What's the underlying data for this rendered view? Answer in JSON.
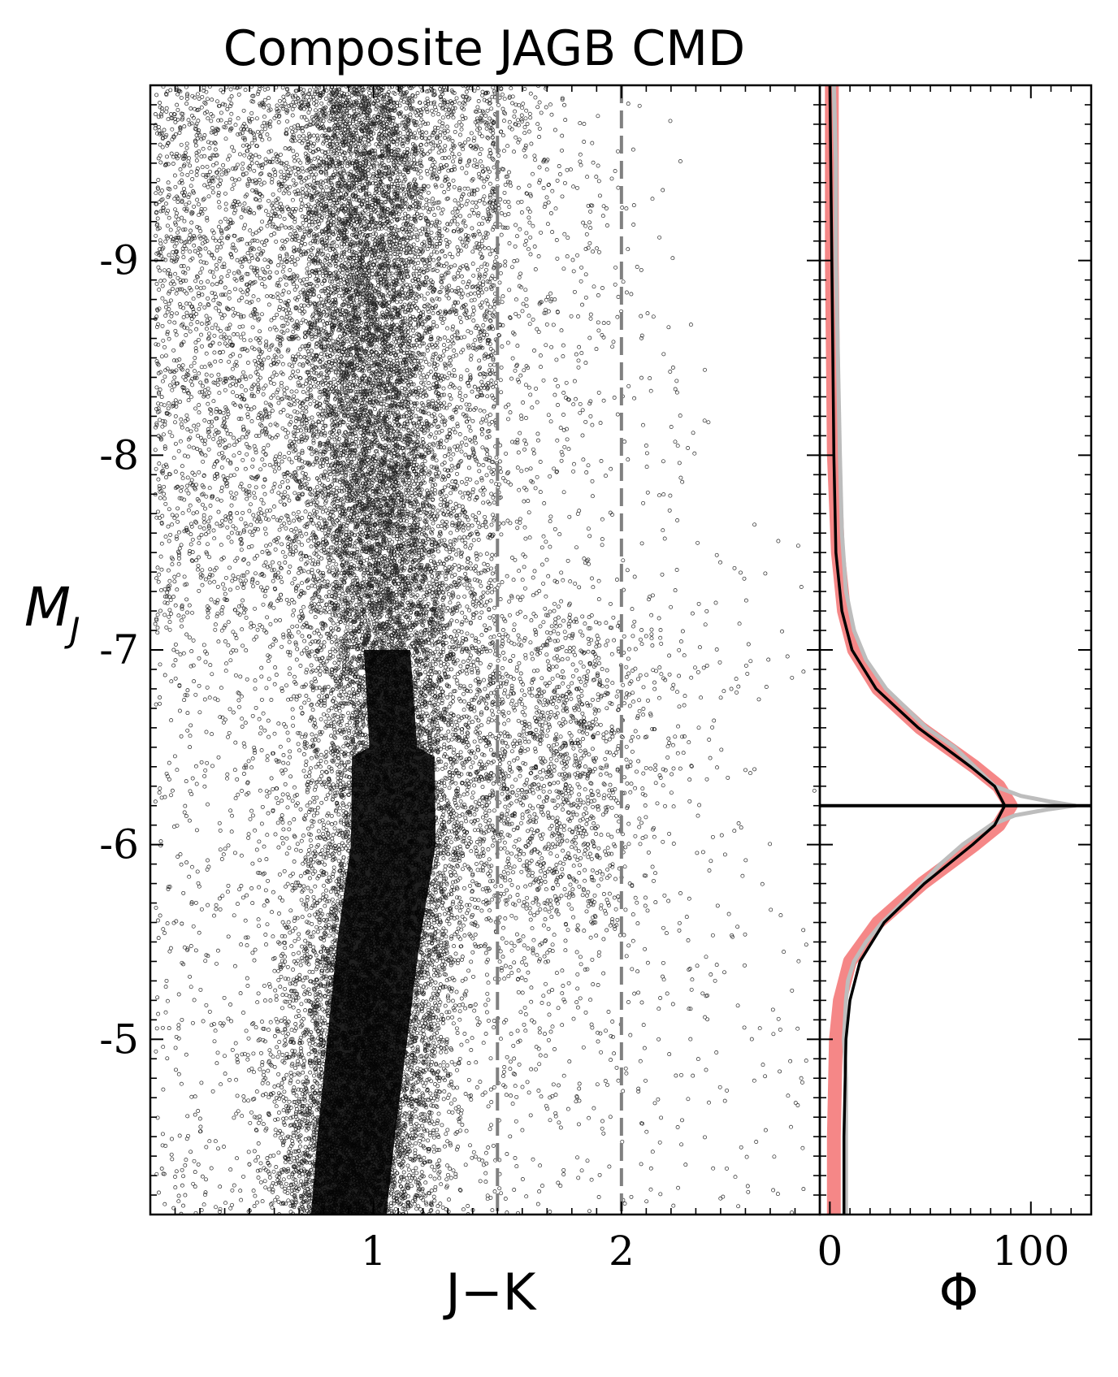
{
  "chart_data": [
    {
      "type": "scatter",
      "title": "Composite JAGB CMD",
      "xlabel": "J−K",
      "ylabel_main": "M",
      "ylabel_sub": "J",
      "xlim": [
        0.1,
        2.8
      ],
      "ylim": [
        -4.1,
        -9.9
      ],
      "y_inverted": true,
      "x_ticks": [
        {
          "value": 1,
          "label": "1"
        },
        {
          "value": 2,
          "label": "2"
        }
      ],
      "y_ticks": [
        {
          "value": -9,
          "label": "-9"
        },
        {
          "value": -8,
          "label": "-8"
        },
        {
          "value": -7,
          "label": "-7"
        },
        {
          "value": -6,
          "label": "-6"
        },
        {
          "value": -5,
          "label": "-5"
        }
      ],
      "color_cuts": [
        1.5,
        2.0
      ],
      "point_color": "#000000",
      "cut_line_color": "#808080",
      "density_profile": {
        "comment_free": true,
        "x_center": [
          [
            -9.9,
            0.95
          ],
          [
            -8.5,
            0.98
          ],
          [
            -7.5,
            1.03
          ],
          [
            -6.5,
            1.08
          ],
          [
            -6.0,
            1.08
          ],
          [
            -5.5,
            1.02
          ],
          [
            -4.5,
            0.93
          ],
          [
            -4.1,
            0.9
          ]
        ],
        "x_width": [
          [
            -9.9,
            0.14
          ],
          [
            -8.0,
            0.16
          ],
          [
            -7.0,
            0.17
          ],
          [
            -6.0,
            0.18
          ],
          [
            -5.0,
            0.17
          ],
          [
            -4.1,
            0.16
          ]
        ],
        "ridge_weight": [
          [
            -9.9,
            0.6
          ],
          [
            -8.0,
            1.1
          ],
          [
            -7.0,
            2.2
          ],
          [
            -6.2,
            4.0
          ],
          [
            -5.5,
            5.0
          ],
          [
            -5.0,
            5.5
          ],
          [
            -4.1,
            5.5
          ]
        ],
        "jagb_mag": -6.2,
        "jagb_width": 0.45,
        "jagb_weight": 1.4
      }
    },
    {
      "type": "line",
      "xlabel": "Φ",
      "xlim": [
        -5,
        130
      ],
      "ylim": [
        -4.1,
        -9.9
      ],
      "x_ticks": [
        {
          "value": 0,
          "label": "0"
        },
        {
          "value": 100,
          "label": "100"
        }
      ],
      "jagb_mode": -6.2,
      "series": [
        {
          "role": "binned-luminosity-function",
          "color": "#bdbdbd",
          "y": [
            -9.9,
            -9.5,
            -9.0,
            -8.5,
            -8.0,
            -7.6,
            -7.3,
            -7.1,
            -6.95,
            -6.8,
            -6.7,
            -6.6,
            -6.5,
            -6.4,
            -6.3,
            -6.25,
            -6.22,
            -6.2,
            -6.18,
            -6.15,
            -6.1,
            -6.0,
            -5.9,
            -5.8,
            -5.7,
            -5.6,
            -5.5,
            -5.4,
            -5.3,
            -5.2,
            -5.0,
            -4.8,
            -4.5,
            -4.1
          ],
          "x": [
            2,
            3,
            3,
            4,
            5,
            6,
            8,
            12,
            18,
            28,
            38,
            48,
            62,
            72,
            82,
            95,
            110,
            122,
            108,
            92,
            80,
            66,
            55,
            46,
            36,
            26,
            18,
            12,
            9,
            8,
            7,
            8,
            8,
            8
          ]
        },
        {
          "role": "smoothed-luminosity-function",
          "color": "#f47a7a",
          "y": [
            -9.9,
            -9.0,
            -8.0,
            -7.5,
            -7.2,
            -7.0,
            -6.8,
            -6.6,
            -6.4,
            -6.3,
            -6.2,
            -6.1,
            -6.0,
            -5.8,
            -5.6,
            -5.4,
            -5.2,
            -5.0,
            -4.5,
            -4.1
          ],
          "x": [
            1,
            1,
            2,
            4,
            7,
            12,
            24,
            45,
            72,
            84,
            90,
            84,
            72,
            46,
            24,
            10,
            5,
            3,
            2,
            2
          ]
        },
        {
          "role": "model-fit",
          "color": "#000000",
          "y": [
            -9.9,
            -9.0,
            -8.0,
            -7.5,
            -7.2,
            -7.0,
            -6.8,
            -6.6,
            -6.4,
            -6.3,
            -6.2,
            -6.1,
            -6.0,
            -5.8,
            -5.6,
            -5.4,
            -5.2,
            -5.0,
            -4.5,
            -4.1
          ],
          "x": [
            0,
            1,
            2,
            3,
            6,
            11,
            23,
            44,
            70,
            82,
            87,
            82,
            71,
            47,
            27,
            15,
            10,
            8,
            7,
            7
          ]
        }
      ]
    }
  ]
}
